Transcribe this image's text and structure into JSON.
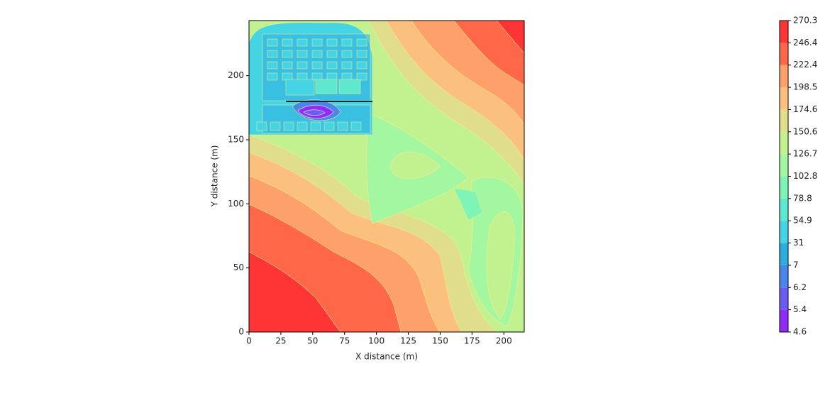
{
  "chart_data": {
    "type": "contour",
    "xlabel": "X distance (m)",
    "ylabel": "Y distance (m)",
    "xlim": [
      0,
      216
    ],
    "ylim": [
      0,
      243
    ],
    "xticks": [
      0,
      25,
      50,
      75,
      100,
      125,
      150,
      175,
      200
    ],
    "yticks": [
      0,
      50,
      100,
      150,
      200
    ],
    "colorbar": {
      "levels": [
        4.6,
        5.4,
        6.2,
        7,
        31,
        54.9,
        78.8,
        102.8,
        126.7,
        150.6,
        174.6,
        198.5,
        222.4,
        246.4,
        270.3
      ],
      "colors": [
        "#8f2df6",
        "#6a5cf0",
        "#4a86ea",
        "#2fadde",
        "#45d4e4",
        "#5ee8d0",
        "#80f4b6",
        "#a2f7a0",
        "#c2f290",
        "#e0dd8c",
        "#fbc07d",
        "#fea06a",
        "#fe6848",
        "#ff3434"
      ]
    }
  }
}
